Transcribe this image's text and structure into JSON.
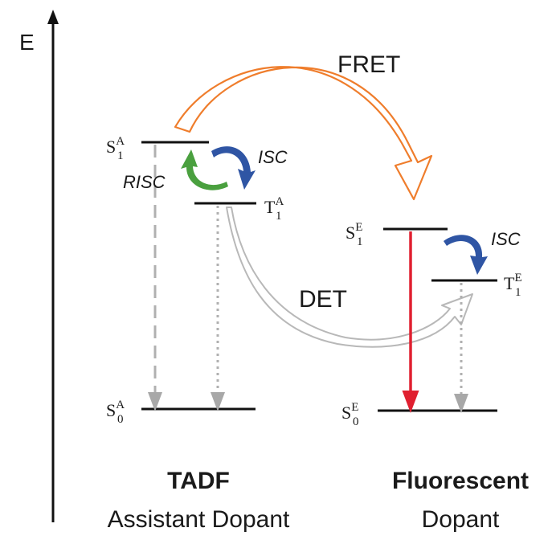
{
  "axis": {
    "label": "E"
  },
  "states": {
    "s1a": {
      "base": "S",
      "sub": "1",
      "sup": "A"
    },
    "t1a": {
      "base": "T",
      "sub": "1",
      "sup": "A"
    },
    "s0a": {
      "base": "S",
      "sub": "0",
      "sup": "A"
    },
    "s1e": {
      "base": "S",
      "sub": "1",
      "sup": "E"
    },
    "t1e": {
      "base": "T",
      "sub": "1",
      "sup": "E"
    },
    "s0e": {
      "base": "S",
      "sub": "0",
      "sup": "E"
    }
  },
  "processes": {
    "fret": "FRET",
    "det": "DET",
    "isc_tadf": "ISC",
    "risc": "RISC",
    "isc_fluor": "ISC"
  },
  "captions": {
    "tadf_title": "TADF",
    "tadf_subtitle": "Assistant Dopant",
    "fluor_title": "Fluorescent",
    "fluor_subtitle": "Dopant"
  },
  "colors": {
    "fret_arrow": "#ef7d2c",
    "det_arrow": "#b8b8b8",
    "isc_arrow": "#2f55a4",
    "risc_arrow": "#4aa03f",
    "fluorescence": "#e02030",
    "nonradiative": "#b0b0b0",
    "levels": "#111111"
  }
}
